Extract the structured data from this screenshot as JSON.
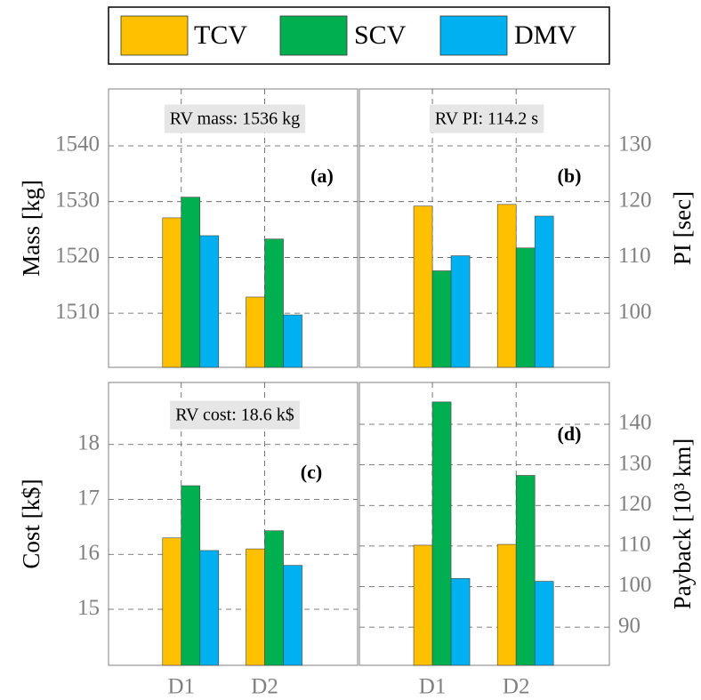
{
  "legend": [
    {
      "name": "TCV",
      "color": "#ffc000"
    },
    {
      "name": "SCV",
      "color": "#00b050"
    },
    {
      "name": "DMV",
      "color": "#00b0f0"
    }
  ],
  "chart_data": [
    {
      "type": "bar",
      "ylabel": "Mass [kg]",
      "annotation": "RV mass: 1536 kg",
      "panel_label": "(a)",
      "y_axis_side": "left",
      "grid": true,
      "series": [
        {
          "values": [
            1527.1,
            1512.9
          ]
        },
        {
          "values": [
            1530.8,
            1523.3
          ]
        },
        {
          "values": [
            1523.9,
            1509.7
          ]
        }
      ],
      "ylim": [
        1500.3,
        1550.2
      ],
      "yticks": [
        1510,
        1520,
        1530,
        1540
      ]
    },
    {
      "type": "bar",
      "ylabel": "PI [sec]",
      "annotation": "RV PI: 114.2 s",
      "panel_label": "(b)",
      "y_axis_side": "right",
      "grid": true,
      "series": [
        {
          "values": [
            119.2,
            119.5
          ]
        },
        {
          "values": [
            107.6,
            111.7
          ]
        },
        {
          "values": [
            110.3,
            117.4
          ]
        }
      ],
      "ylim": [
        90.3,
        140.2
      ],
      "yticks": [
        100,
        110,
        120,
        130
      ]
    },
    {
      "type": "bar",
      "ylabel": "Cost [k$]",
      "annotation": "RV cost: 18.6 k$",
      "panel_label": "(c)",
      "y_axis_side": "left",
      "grid": true,
      "categories": [
        "D1",
        "D2"
      ],
      "series": [
        {
          "values": [
            16.3,
            16.1
          ]
        },
        {
          "values": [
            17.25,
            16.43
          ]
        },
        {
          "values": [
            16.07,
            15.8
          ]
        }
      ],
      "ylim": [
        13.98,
        19.13
      ],
      "yticks": [
        15,
        16,
        17,
        18
      ]
    },
    {
      "type": "bar",
      "ylabel": "Payback [10³ km]",
      "panel_label": "(d)",
      "y_axis_side": "right",
      "grid": true,
      "categories": [
        "D1",
        "D2"
      ],
      "series": [
        {
          "values": [
            110.2,
            110.4
          ]
        },
        {
          "values": [
            145.5,
            127.4
          ]
        },
        {
          "values": [
            102,
            101.3
          ]
        }
      ],
      "ylim": [
        80.6,
        150.3
      ],
      "yticks": [
        90,
        100,
        110,
        120,
        130,
        140
      ]
    }
  ]
}
